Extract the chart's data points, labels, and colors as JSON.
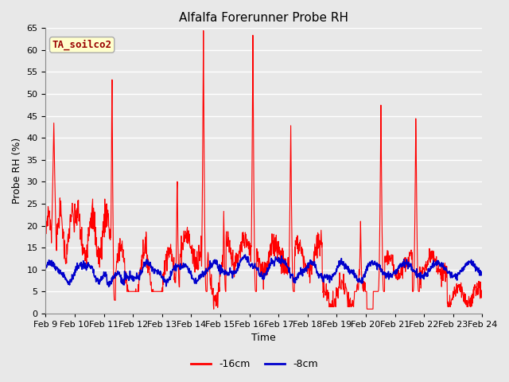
{
  "title": "Alfalfa Forerunner Probe RH",
  "xlabel": "Time",
  "ylabel": "Probe RH (%)",
  "ylim": [
    0,
    65
  ],
  "yticks": [
    0,
    5,
    10,
    15,
    20,
    25,
    30,
    35,
    40,
    45,
    50,
    55,
    60,
    65
  ],
  "xtick_labels": [
    "Feb 9",
    "Feb 10",
    "Feb 11",
    "Feb 12",
    "Feb 13",
    "Feb 14",
    "Feb 15",
    "Feb 16",
    "Feb 17",
    "Feb 18",
    "Feb 19",
    "Feb 20",
    "Feb 21",
    "Feb 22",
    "Feb 23",
    "Feb 24"
  ],
  "line16_color": "#ff0000",
  "line8_color": "#0000cc",
  "legend_16cm": "-16cm",
  "legend_8cm": "-8cm",
  "annotation_label": "TA_soilco2",
  "annotation_box_color": "#ffffcc",
  "annotation_text_color": "#990000",
  "fig_bg_color": "#e8e8e8",
  "plot_bg_color": "#e8e8e8",
  "grid_color": "#ffffff",
  "title_fontsize": 11,
  "axis_fontsize": 9,
  "tick_fontsize": 8,
  "legend_fontsize": 9
}
